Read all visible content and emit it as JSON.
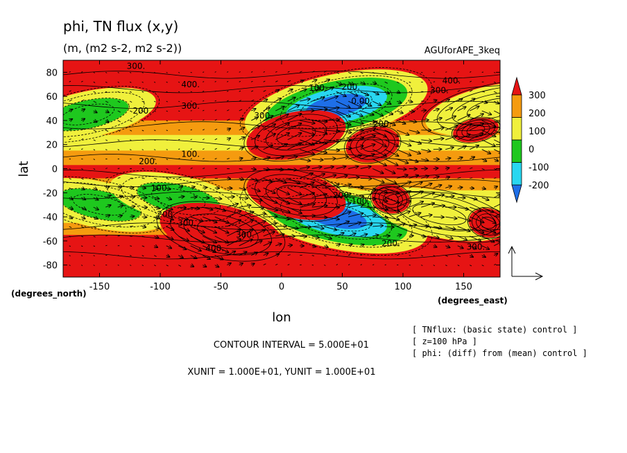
{
  "chart_data": {
    "type": "heatmap",
    "title": "phi, TN flux (x,y)",
    "subtitle": "(m, (m2 s-2, m2 s-2))",
    "run_label": "AGUforAPE_3keq",
    "xlabel": "lon",
    "ylabel": "lat",
    "xunit_label": "(degrees_east)",
    "yunit_label": "(degrees_north)",
    "xlim": [
      -180,
      180
    ],
    "ylim": [
      -90,
      90
    ],
    "x_ticks": [
      -150,
      -100,
      -50,
      0,
      50,
      100,
      150
    ],
    "x_tick_labels": [
      "-150",
      "-100",
      "-50",
      "0",
      "50",
      "100",
      "150"
    ],
    "y_ticks": [
      -80,
      -60,
      -40,
      -20,
      0,
      20,
      40,
      60,
      80
    ],
    "y_tick_labels": [
      "-80",
      "-60",
      "-40",
      "-20",
      "0",
      "20",
      "40",
      "60",
      "80"
    ],
    "colorbar": {
      "levels": [
        -200,
        -100,
        0,
        100,
        200,
        300
      ],
      "labels": [
        "-200",
        "-100",
        "0",
        "100",
        "200",
        "300"
      ],
      "colors": [
        "#1e6fe8",
        "#28d7f0",
        "#1ec81e",
        "#f0f03c",
        "#f59b0f",
        "#e61414"
      ]
    },
    "contour_labels": [
      {
        "text": "300.",
        "lon": -120,
        "lat": 85
      },
      {
        "text": "400.",
        "lon": -75,
        "lat": 70
      },
      {
        "text": "300.",
        "lon": -75,
        "lat": 52
      },
      {
        "text": "200.",
        "lon": -115,
        "lat": 48
      },
      {
        "text": "100.",
        "lon": -75,
        "lat": 12
      },
      {
        "text": "200.",
        "lon": -110,
        "lat": 6
      },
      {
        "text": "100.",
        "lon": -100,
        "lat": -16
      },
      {
        "text": "200.",
        "lon": -95,
        "lat": -38
      },
      {
        "text": "300.",
        "lon": -78,
        "lat": -45
      },
      {
        "text": "400.",
        "lon": -55,
        "lat": -66
      },
      {
        "text": "300.",
        "lon": -30,
        "lat": -55
      },
      {
        "text": "300.",
        "lon": -15,
        "lat": 44
      },
      {
        "text": "100.",
        "lon": 30,
        "lat": 67
      },
      {
        "text": "200.",
        "lon": 57,
        "lat": 68
      },
      {
        "text": "0.00",
        "lon": 65,
        "lat": 56
      },
      {
        "text": "200.",
        "lon": 83,
        "lat": 37
      },
      {
        "text": "200.",
        "lon": 50,
        "lat": -22
      },
      {
        "text": "100.",
        "lon": 65,
        "lat": -27
      },
      {
        "text": "200.",
        "lon": 90,
        "lat": -62
      },
      {
        "text": "300.",
        "lon": 160,
        "lat": -65
      },
      {
        "text": "400.",
        "lon": 140,
        "lat": 73
      },
      {
        "text": "300.",
        "lon": 130,
        "lat": 65
      }
    ],
    "anomaly_centers": [
      {
        "lon": -160,
        "lat": 45,
        "value": -50
      },
      {
        "lon": -150,
        "lat": -30,
        "value": -80
      },
      {
        "lon": -85,
        "lat": -25,
        "value": -60
      },
      {
        "lon": 45,
        "lat": 52,
        "value": -250
      },
      {
        "lon": 45,
        "lat": -40,
        "value": -220
      },
      {
        "lon": 130,
        "lat": -38,
        "value": 20
      },
      {
        "lon": 175,
        "lat": 50,
        "value": 20
      },
      {
        "lon": -50,
        "lat": -52,
        "value": 420
      },
      {
        "lon": 12,
        "lat": 28,
        "value": 360
      },
      {
        "lon": 12,
        "lat": -22,
        "value": 360
      },
      {
        "lon": 75,
        "lat": 20,
        "value": 340
      },
      {
        "lon": 90,
        "lat": -25,
        "value": 330
      },
      {
        "lon": 170,
        "lat": -45,
        "value": 320
      },
      {
        "lon": 160,
        "lat": 32,
        "value": 300
      }
    ],
    "reference_vector_label": "",
    "annotations": [
      "[ TNflux: (basic state) control ]",
      "[ z=100 hPa ]",
      "[ phi: (diff) from (mean) control ]"
    ],
    "contour_interval_text": "CONTOUR INTERVAL = 5.000E+01",
    "unit_text": "XUNIT = 1.000E+01, YUNIT = 1.000E+01",
    "grid": false,
    "legend": "right"
  }
}
